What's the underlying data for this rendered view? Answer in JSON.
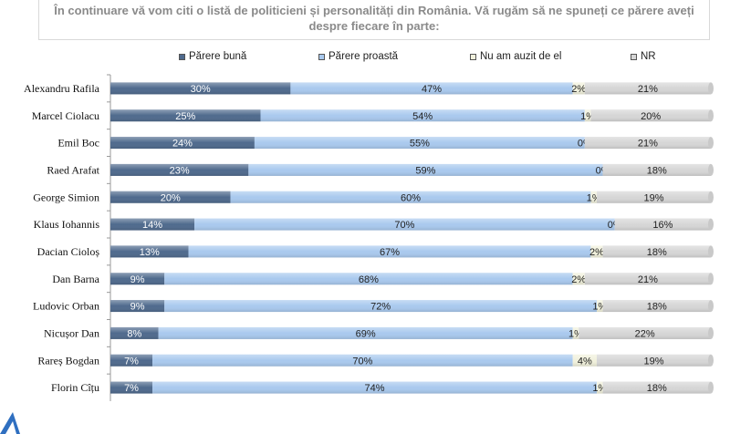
{
  "question": {
    "line1": "În continuare vă vom citi o listă de politicieni și personalități din România. Vă rugăm să ne spuneți ce părere aveți",
    "line2": "despre fiecare în parte:"
  },
  "chart_data": {
    "type": "bar",
    "orientation": "horizontal",
    "stacked": true,
    "percent_stacked": true,
    "legend_position": "top",
    "categories": [
      "Alexandru Rafila",
      "Marcel Ciolacu",
      "Emil Boc",
      "Raed Arafat",
      "George Simion",
      "Klaus Iohannis",
      "Dacian Cioloș",
      "Dan Barna",
      "Ludovic Orban",
      "Nicușor Dan",
      "Rareș Bogdan",
      "Florin Cîțu"
    ],
    "series": [
      {
        "name": "Părere bună",
        "color": "#4f6a8d",
        "label_color": "#ffffff",
        "values": [
          30,
          25,
          24,
          23,
          20,
          14,
          13,
          9,
          9,
          8,
          7,
          7
        ]
      },
      {
        "name": "Părere proastă",
        "color": "#a9c9ee",
        "label_color": "#222222",
        "values": [
          47,
          54,
          55,
          59,
          60,
          70,
          67,
          68,
          72,
          69,
          70,
          74
        ]
      },
      {
        "name": "Nu am auzit de el",
        "color": "#f1f1dc",
        "label_color": "#222222",
        "values": [
          2,
          1,
          0,
          0,
          1,
          0,
          2,
          2,
          1,
          1,
          4,
          1
        ]
      },
      {
        "name": "NR",
        "color": "#d6d6d6",
        "label_color": "#222222",
        "values": [
          21,
          20,
          21,
          18,
          19,
          16,
          18,
          21,
          18,
          22,
          19,
          18
        ]
      }
    ],
    "value_suffix": "%",
    "xlim": [
      0,
      100
    ]
  },
  "logo": {
    "icon": "triangle-logo-icon",
    "color": "#2f6fc0"
  }
}
